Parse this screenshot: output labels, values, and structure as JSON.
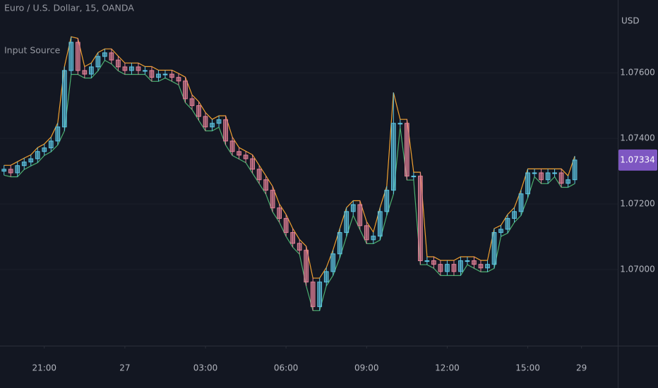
{
  "chart_data": {
    "type": "candlestick",
    "title": "Euro / U.S. Dollar, 15, OANDA",
    "indicator": "Input Source",
    "y_axis_label": "USD",
    "last_price": {
      "value": 1.07334,
      "label": "1.07334"
    },
    "background": "#131722",
    "up_color": "#5ec8e5",
    "down_color": "#e8849a",
    "high_line_color": "#f0a030",
    "low_line_color": "#4caf70",
    "last_price_color": "#7e57c2",
    "xlim": [
      -4.65,
      18.35
    ],
    "ylim": [
      1.06768,
      1.07822
    ],
    "xticks": [
      {
        "value": -3,
        "label": "21:00"
      },
      {
        "value": 0,
        "label": "27"
      },
      {
        "value": 3,
        "label": "03:00"
      },
      {
        "value": 6,
        "label": "06:00"
      },
      {
        "value": 9,
        "label": "09:00"
      },
      {
        "value": 12,
        "label": "12:00"
      },
      {
        "value": 15,
        "label": "15:00"
      },
      {
        "value": 17,
        "label": "29"
      }
    ],
    "yticks": [
      {
        "value": 1.07,
        "label": "1.07000"
      },
      {
        "value": 1.072,
        "label": "1.07200"
      },
      {
        "value": 1.074,
        "label": "1.07400"
      },
      {
        "value": 1.076,
        "label": "1.07600"
      }
    ],
    "x": [
      -4.5,
      -4.25,
      -4,
      -3.75,
      -3.5,
      -3.25,
      -3,
      -2.75,
      -2.5,
      -2.25,
      -2,
      -1.75,
      -1.5,
      -1.25,
      -1,
      -0.75,
      -0.5,
      -0.25,
      0,
      0.25,
      0.5,
      0.75,
      1,
      1.25,
      1.5,
      1.75,
      2,
      2.25,
      2.5,
      2.75,
      3,
      3.25,
      3.5,
      3.75,
      4,
      4.25,
      4.5,
      4.75,
      5,
      5.25,
      5.5,
      5.75,
      6,
      6.25,
      6.5,
      6.75,
      7,
      7.25,
      7.5,
      7.75,
      8,
      8.25,
      8.5,
      8.75,
      9,
      9.25,
      9.5,
      9.75,
      10,
      10.25,
      10.5,
      10.75,
      11,
      11.25,
      11.5,
      11.75,
      12,
      12.25,
      12.5,
      12.75,
      13,
      13.25,
      13.5,
      13.75,
      14,
      14.25,
      14.5,
      14.75,
      15,
      15.25,
      15.5,
      15.75,
      16,
      16.25,
      16.5,
      16.75
    ],
    "open": [
      1.073,
      1.07306,
      1.07295,
      1.07317,
      1.07328,
      1.07338,
      1.0736,
      1.07371,
      1.07392,
      1.07435,
      1.07607,
      1.07693,
      1.07607,
      1.07596,
      1.07618,
      1.0765,
      1.07661,
      1.07639,
      1.07618,
      1.07607,
      1.07618,
      1.07607,
      1.07607,
      1.07586,
      1.07596,
      1.07596,
      1.07586,
      1.07575,
      1.07521,
      1.075,
      1.07467,
      1.07435,
      1.07446,
      1.07457,
      1.07392,
      1.0736,
      1.07349,
      1.07338,
      1.07306,
      1.07274,
      1.07242,
      1.07188,
      1.07156,
      1.07113,
      1.0708,
      1.07059,
      1.06962,
      1.06887,
      1.06962,
      1.06994,
      1.07048,
      1.07113,
      1.07177,
      1.07198,
      1.07134,
      1.07091,
      1.07102,
      1.07177,
      1.07242,
      1.07446,
      1.07446,
      1.07285,
      1.07285,
      1.07027,
      1.07027,
      1.07016,
      1.06994,
      1.07016,
      1.06994,
      1.07027,
      1.07027,
      1.07016,
      1.07005,
      1.07016,
      1.07113,
      1.07123,
      1.07156,
      1.07177,
      1.07231,
      1.07295,
      1.07295,
      1.07274,
      1.07295,
      1.07295,
      1.07263,
      1.07274
    ],
    "high": [
      1.07318,
      1.07318,
      1.07329,
      1.0734,
      1.0735,
      1.07372,
      1.07383,
      1.07404,
      1.07447,
      1.07619,
      1.0771,
      1.07705,
      1.07619,
      1.0763,
      1.07662,
      1.07673,
      1.07673,
      1.07651,
      1.0763,
      1.0763,
      1.0763,
      1.07619,
      1.07619,
      1.07608,
      1.07608,
      1.07608,
      1.07598,
      1.07587,
      1.07533,
      1.07512,
      1.07479,
      1.07458,
      1.07469,
      1.07469,
      1.07404,
      1.07372,
      1.07361,
      1.0735,
      1.07318,
      1.07286,
      1.07254,
      1.072,
      1.07168,
      1.07125,
      1.07092,
      1.07071,
      1.06974,
      1.06974,
      1.07006,
      1.0706,
      1.07125,
      1.07189,
      1.0721,
      1.0721,
      1.07146,
      1.07114,
      1.07189,
      1.07254,
      1.0754,
      1.07458,
      1.07458,
      1.07297,
      1.07297,
      1.07039,
      1.07039,
      1.07028,
      1.07028,
      1.07028,
      1.07039,
      1.07039,
      1.07039,
      1.07028,
      1.07028,
      1.07125,
      1.07135,
      1.07168,
      1.07189,
      1.07243,
      1.07307,
      1.07307,
      1.07307,
      1.07307,
      1.07307,
      1.07307,
      1.07286,
      1.07346
    ],
    "low": [
      1.07288,
      1.07283,
      1.07283,
      1.07305,
      1.07316,
      1.07326,
      1.07348,
      1.07359,
      1.0738,
      1.07423,
      1.07595,
      1.07595,
      1.07584,
      1.07584,
      1.07606,
      1.07638,
      1.07627,
      1.07606,
      1.07595,
      1.07595,
      1.07595,
      1.07595,
      1.07574,
      1.07574,
      1.07584,
      1.07574,
      1.07563,
      1.07509,
      1.07488,
      1.07455,
      1.07423,
      1.07423,
      1.07434,
      1.0738,
      1.07348,
      1.07337,
      1.07326,
      1.07294,
      1.07262,
      1.0723,
      1.07176,
      1.07144,
      1.07101,
      1.07068,
      1.07047,
      1.0695,
      1.06875,
      1.06875,
      1.0695,
      1.06982,
      1.07036,
      1.07101,
      1.07165,
      1.07122,
      1.07079,
      1.07079,
      1.0709,
      1.07165,
      1.0723,
      1.07434,
      1.07273,
      1.07273,
      1.07015,
      1.07015,
      1.07004,
      1.06982,
      1.06982,
      1.06982,
      1.06982,
      1.07015,
      1.07004,
      1.06993,
      1.06993,
      1.07004,
      1.07101,
      1.07111,
      1.07144,
      1.07165,
      1.07219,
      1.07283,
      1.07262,
      1.07262,
      1.07283,
      1.07251,
      1.07251,
      1.07262
    ],
    "close": [
      1.07306,
      1.07295,
      1.07317,
      1.07328,
      1.07338,
      1.0736,
      1.07371,
      1.07392,
      1.07435,
      1.07607,
      1.07693,
      1.07607,
      1.07596,
      1.07618,
      1.0765,
      1.07661,
      1.07639,
      1.07618,
      1.07607,
      1.07618,
      1.07607,
      1.07607,
      1.07586,
      1.07596,
      1.07596,
      1.07586,
      1.07575,
      1.07521,
      1.075,
      1.07467,
      1.07435,
      1.07446,
      1.07457,
      1.07392,
      1.0736,
      1.07349,
      1.07338,
      1.07306,
      1.07274,
      1.07242,
      1.07188,
      1.07156,
      1.07113,
      1.0708,
      1.07059,
      1.06962,
      1.06887,
      1.06962,
      1.06994,
      1.07048,
      1.07113,
      1.07177,
      1.07198,
      1.07134,
      1.07091,
      1.07102,
      1.07177,
      1.07242,
      1.07446,
      1.07446,
      1.07285,
      1.07285,
      1.07027,
      1.07027,
      1.07016,
      1.06994,
      1.07016,
      1.06994,
      1.07027,
      1.07027,
      1.07016,
      1.07005,
      1.07016,
      1.07113,
      1.07123,
      1.07156,
      1.07177,
      1.07231,
      1.07295,
      1.07295,
      1.07274,
      1.07295,
      1.07295,
      1.07263,
      1.07274,
      1.07334
    ]
  }
}
